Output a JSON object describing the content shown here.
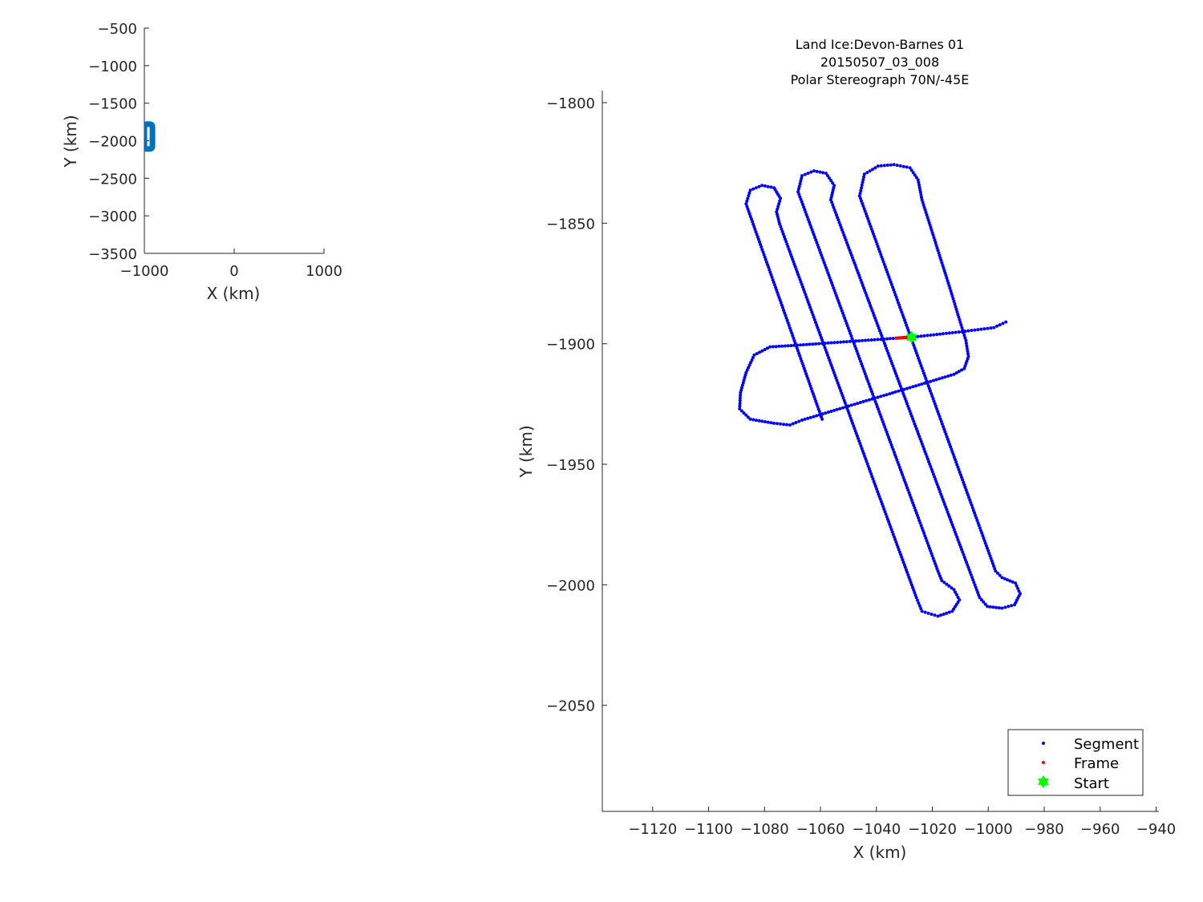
{
  "chart_data": [
    {
      "type": "line",
      "xlabel": "X (km)",
      "ylabel": "Y (km)",
      "xlim": [
        -1000,
        1000
      ],
      "ylim": [
        -3500,
        -500
      ],
      "xticks": [
        -1000,
        0,
        1000
      ],
      "yticks": [
        -500,
        -1000,
        -1500,
        -2000,
        -2500,
        -3000,
        -3500
      ],
      "grid": false,
      "series_color": "#0072BD",
      "note_region": "flight path shown at x approx -1000 to -910, y approx -1750 to -2125"
    },
    {
      "type": "scatter",
      "title": [
        "Land Ice:Devon-Barnes 01",
        "20150507_03_008",
        "Polar Stereograph 70N/-45E"
      ],
      "xlabel": "X (km)",
      "ylabel": "Y (km)",
      "xlim": [
        -1138,
        -939
      ],
      "ylim": [
        -2094,
        -1795
      ],
      "xticks": [
        -1120,
        -1100,
        -1080,
        -1060,
        -1040,
        -1020,
        -1000,
        -980,
        -960,
        -940
      ],
      "yticks": [
        -1800,
        -1850,
        -1900,
        -1950,
        -2000,
        -2050
      ],
      "grid": false,
      "legend": {
        "placement": "bottom-right",
        "entries": [
          "Segment",
          "Frame",
          "Start"
        ]
      },
      "series": [
        {
          "name": "Segment",
          "color": "#0000FF",
          "marker": "dot",
          "path": [
            [
              -1059.4,
              -1931.3
            ],
            [
              -1086.6,
              -1842.0
            ],
            [
              -1085.1,
              -1836.3
            ],
            [
              -1080.9,
              -1834.3
            ],
            [
              -1076.6,
              -1835.3
            ],
            [
              -1074.3,
              -1839.7
            ],
            [
              -1075.7,
              -1845.3
            ],
            [
              -1074.6,
              -1850.3
            ],
            [
              -1025.7,
              -2005.3
            ],
            [
              -1023.7,
              -2011.0
            ],
            [
              -1018.0,
              -2013.0
            ],
            [
              -1012.9,
              -2011.0
            ],
            [
              -1010.3,
              -2006.3
            ],
            [
              -1012.3,
              -2002.0
            ],
            [
              -1016.6,
              -1998.3
            ],
            [
              -1018.0,
              -1994.3
            ],
            [
              -1068.0,
              -1837.0
            ],
            [
              -1066.6,
              -1830.3
            ],
            [
              -1062.3,
              -1828.3
            ],
            [
              -1058.0,
              -1829.3
            ],
            [
              -1055.1,
              -1834.3
            ],
            [
              -1056.3,
              -1840.3
            ],
            [
              -1003.1,
              -2005.3
            ],
            [
              -1000.3,
              -2009.0
            ],
            [
              -995.1,
              -2009.7
            ],
            [
              -990.6,
              -2008.3
            ],
            [
              -988.6,
              -2003.7
            ],
            [
              -990.3,
              -1999.3
            ],
            [
              -995.1,
              -1997.0
            ],
            [
              -997.4,
              -1994.3
            ],
            [
              -1046.0,
              -1838.7
            ],
            [
              -1044.3,
              -1829.7
            ],
            [
              -1039.4,
              -1826.3
            ],
            [
              -1033.7,
              -1825.7
            ],
            [
              -1028.0,
              -1827.0
            ],
            [
              -1025.1,
              -1832.0
            ],
            [
              -1023.7,
              -1840.3
            ],
            [
              -1013.7,
              -1877.0
            ],
            [
              -1008.0,
              -1898.7
            ],
            [
              -1007.1,
              -1905.3
            ],
            [
              -1008.6,
              -1910.3
            ],
            [
              -1012.3,
              -1912.7
            ],
            [
              -1066.6,
              -1931.7
            ],
            [
              -1070.9,
              -1933.7
            ],
            [
              -1076.6,
              -1933.0
            ],
            [
              -1085.1,
              -1931.3
            ],
            [
              -1088.9,
              -1927.0
            ],
            [
              -1088.6,
              -1920.3
            ],
            [
              -1086.6,
              -1912.0
            ],
            [
              -1083.7,
              -1904.7
            ],
            [
              -1078.0,
              -1901.3
            ],
            [
              -1069.4,
              -1900.7
            ],
            [
              -1032.9,
              -1897.7
            ],
            [
              -1027.4,
              -1897.3
            ],
            [
              -1009.4,
              -1895.0
            ],
            [
              -998.0,
              -1893.3
            ],
            [
              -993.7,
              -1891.0
            ]
          ]
        },
        {
          "name": "Frame",
          "color": "#FF0000",
          "marker": "dot",
          "path": [
            [
              -1032.9,
              -1897.7
            ],
            [
              -1028.9,
              -1897.3
            ]
          ]
        },
        {
          "name": "Start",
          "color": "#00FF00",
          "marker": "hexagram",
          "point": [
            -1027.4,
            -1897.3
          ]
        }
      ]
    }
  ]
}
